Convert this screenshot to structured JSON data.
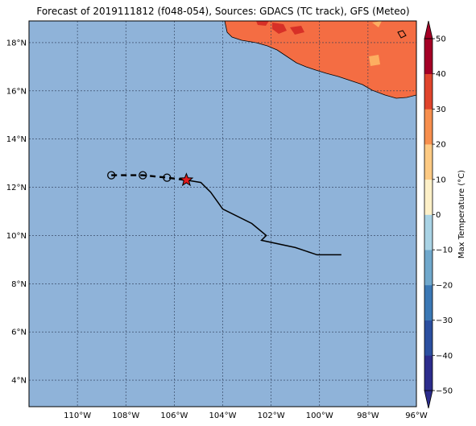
{
  "title": "Forecast of 2019111812 (f048-054), Sources: GDACS (TC track), GFS (Meteo)",
  "map": {
    "lon_range": [
      -112,
      -96
    ],
    "lat_range": [
      2.9,
      18.9
    ],
    "lon_ticks": [
      "110°W",
      "108°W",
      "106°W",
      "104°W",
      "102°W",
      "100°W",
      "98°W",
      "96°W"
    ],
    "lat_ticks": [
      "4°N",
      "6°N",
      "8°N",
      "10°N",
      "12°N",
      "14°N",
      "16°N",
      "18°N"
    ],
    "ocean_color": "#8fb3d9",
    "grid": true
  },
  "track": {
    "past_points": [
      [
        -105.5,
        12.3
      ],
      [
        -104.9,
        12.2
      ],
      [
        -104.5,
        11.8
      ],
      [
        -104.0,
        11.1
      ],
      [
        -102.8,
        10.5
      ],
      [
        -102.2,
        10.0
      ],
      [
        -102.4,
        9.8
      ],
      [
        -101.0,
        9.5
      ],
      [
        -100.1,
        9.2
      ],
      [
        -99.1,
        9.2
      ]
    ],
    "forecast_points": [
      [
        -108.6,
        12.5
      ],
      [
        -107.3,
        12.5
      ],
      [
        -106.3,
        12.4
      ],
      [
        -105.5,
        12.3
      ]
    ],
    "forecast_circles": [
      [
        -108.6,
        12.5
      ],
      [
        -107.3,
        12.5
      ],
      [
        -106.3,
        12.4
      ]
    ],
    "current_position": [
      -105.5,
      12.3
    ],
    "star_color": "#e31a1c"
  },
  "colorbar": {
    "label": "Max Temperature (°C)",
    "tick_labels": [
      "−50",
      "−40",
      "−30",
      "−20",
      "−10",
      "0",
      "10",
      "20",
      "30",
      "40",
      "50"
    ],
    "colors": [
      "#2c2c8c",
      "#2b4fa0",
      "#3b78b5",
      "#70a8cc",
      "#a9d3e5",
      "#e3f2f2",
      "#fdf0c8",
      "#fdca84",
      "#f78f4e",
      "#e0442c",
      "#a50026"
    ]
  },
  "land": {
    "main_color": "#f46d43",
    "hot_color": "#d73027",
    "warm_color": "#fdae61"
  }
}
